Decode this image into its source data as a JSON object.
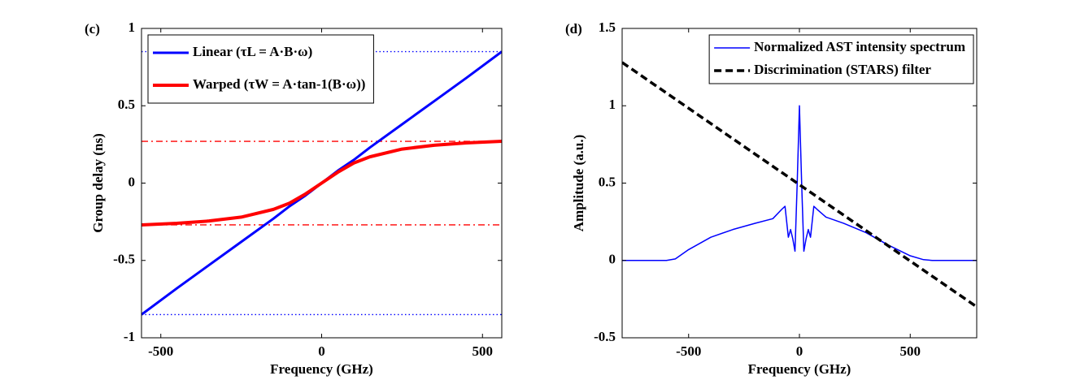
{
  "chart_data": [
    {
      "type": "line",
      "panel_label": "(c)",
      "xlabel": "Frequency (GHz)",
      "ylabel": "Group delay (ns)",
      "xlim": [
        -560,
        560
      ],
      "ylim": [
        -1,
        1
      ],
      "xticks": [
        -500,
        0,
        500
      ],
      "yticks": [
        -1,
        -0.5,
        0,
        0.5,
        1
      ],
      "legend": "upper left",
      "series": [
        {
          "name": "Linear (τL = A·B·ω)",
          "color": "#0000ff",
          "width": 3,
          "x": [
            -560,
            -450,
            -350,
            -250,
            -150,
            -100,
            -50,
            0,
            50,
            100,
            150,
            250,
            350,
            450,
            560
          ],
          "values": [
            -0.85,
            -0.68,
            -0.53,
            -0.38,
            -0.23,
            -0.15,
            -0.08,
            0,
            0.08,
            0.15,
            0.23,
            0.38,
            0.53,
            0.68,
            0.85
          ]
        },
        {
          "name": "Warped (τW = A·tan-1(B·ω))",
          "color": "#ff0000",
          "width": 4,
          "x": [
            -560,
            -450,
            -350,
            -250,
            -150,
            -100,
            -50,
            0,
            50,
            100,
            150,
            250,
            350,
            450,
            560
          ],
          "values": [
            -0.27,
            -0.26,
            -0.245,
            -0.22,
            -0.17,
            -0.13,
            -0.07,
            0,
            0.07,
            0.13,
            0.17,
            0.22,
            0.245,
            0.26,
            0.27
          ]
        }
      ],
      "reference_lines": [
        {
          "y": 0.85,
          "color": "#0000ff",
          "dash": "dotted"
        },
        {
          "y": -0.85,
          "color": "#0000ff",
          "dash": "dotted"
        },
        {
          "y": 0.27,
          "color": "#ff0000",
          "dash": "dashdot"
        },
        {
          "y": -0.27,
          "color": "#ff0000",
          "dash": "dashdot"
        }
      ]
    },
    {
      "type": "line",
      "panel_label": "(d)",
      "xlabel": "Frequency (GHz)",
      "ylabel": "Amplitude (a.u.)",
      "xlim": [
        -800,
        800
      ],
      "ylim": [
        -0.5,
        1.5
      ],
      "xticks": [
        -500,
        0,
        500
      ],
      "yticks": [
        -0.5,
        0,
        0.5,
        1,
        1.5
      ],
      "legend": "upper right",
      "series": [
        {
          "name": "Normalized AST intensity spectrum",
          "color": "#0000ff",
          "width": 1.5,
          "x": [
            -800,
            -600,
            -560,
            -500,
            -400,
            -300,
            -200,
            -120,
            -80,
            -65,
            -50,
            -40,
            -30,
            -20,
            -10,
            0,
            10,
            20,
            30,
            40,
            50,
            65,
            80,
            120,
            200,
            300,
            400,
            500,
            560,
            600,
            800
          ],
          "values": [
            0,
            0,
            0.01,
            0.07,
            0.15,
            0.2,
            0.24,
            0.27,
            0.33,
            0.35,
            0.15,
            0.2,
            0.14,
            0.06,
            0.5,
            1.0,
            0.5,
            0.06,
            0.14,
            0.2,
            0.15,
            0.35,
            0.33,
            0.28,
            0.24,
            0.18,
            0.1,
            0.03,
            0.005,
            0,
            0
          ]
        },
        {
          "name": "Discrimination (STARS) filter",
          "color": "#000000",
          "width": 3.5,
          "dash": "dashed",
          "x": [
            -800,
            800
          ],
          "values": [
            1.28,
            -0.3
          ]
        }
      ]
    }
  ]
}
